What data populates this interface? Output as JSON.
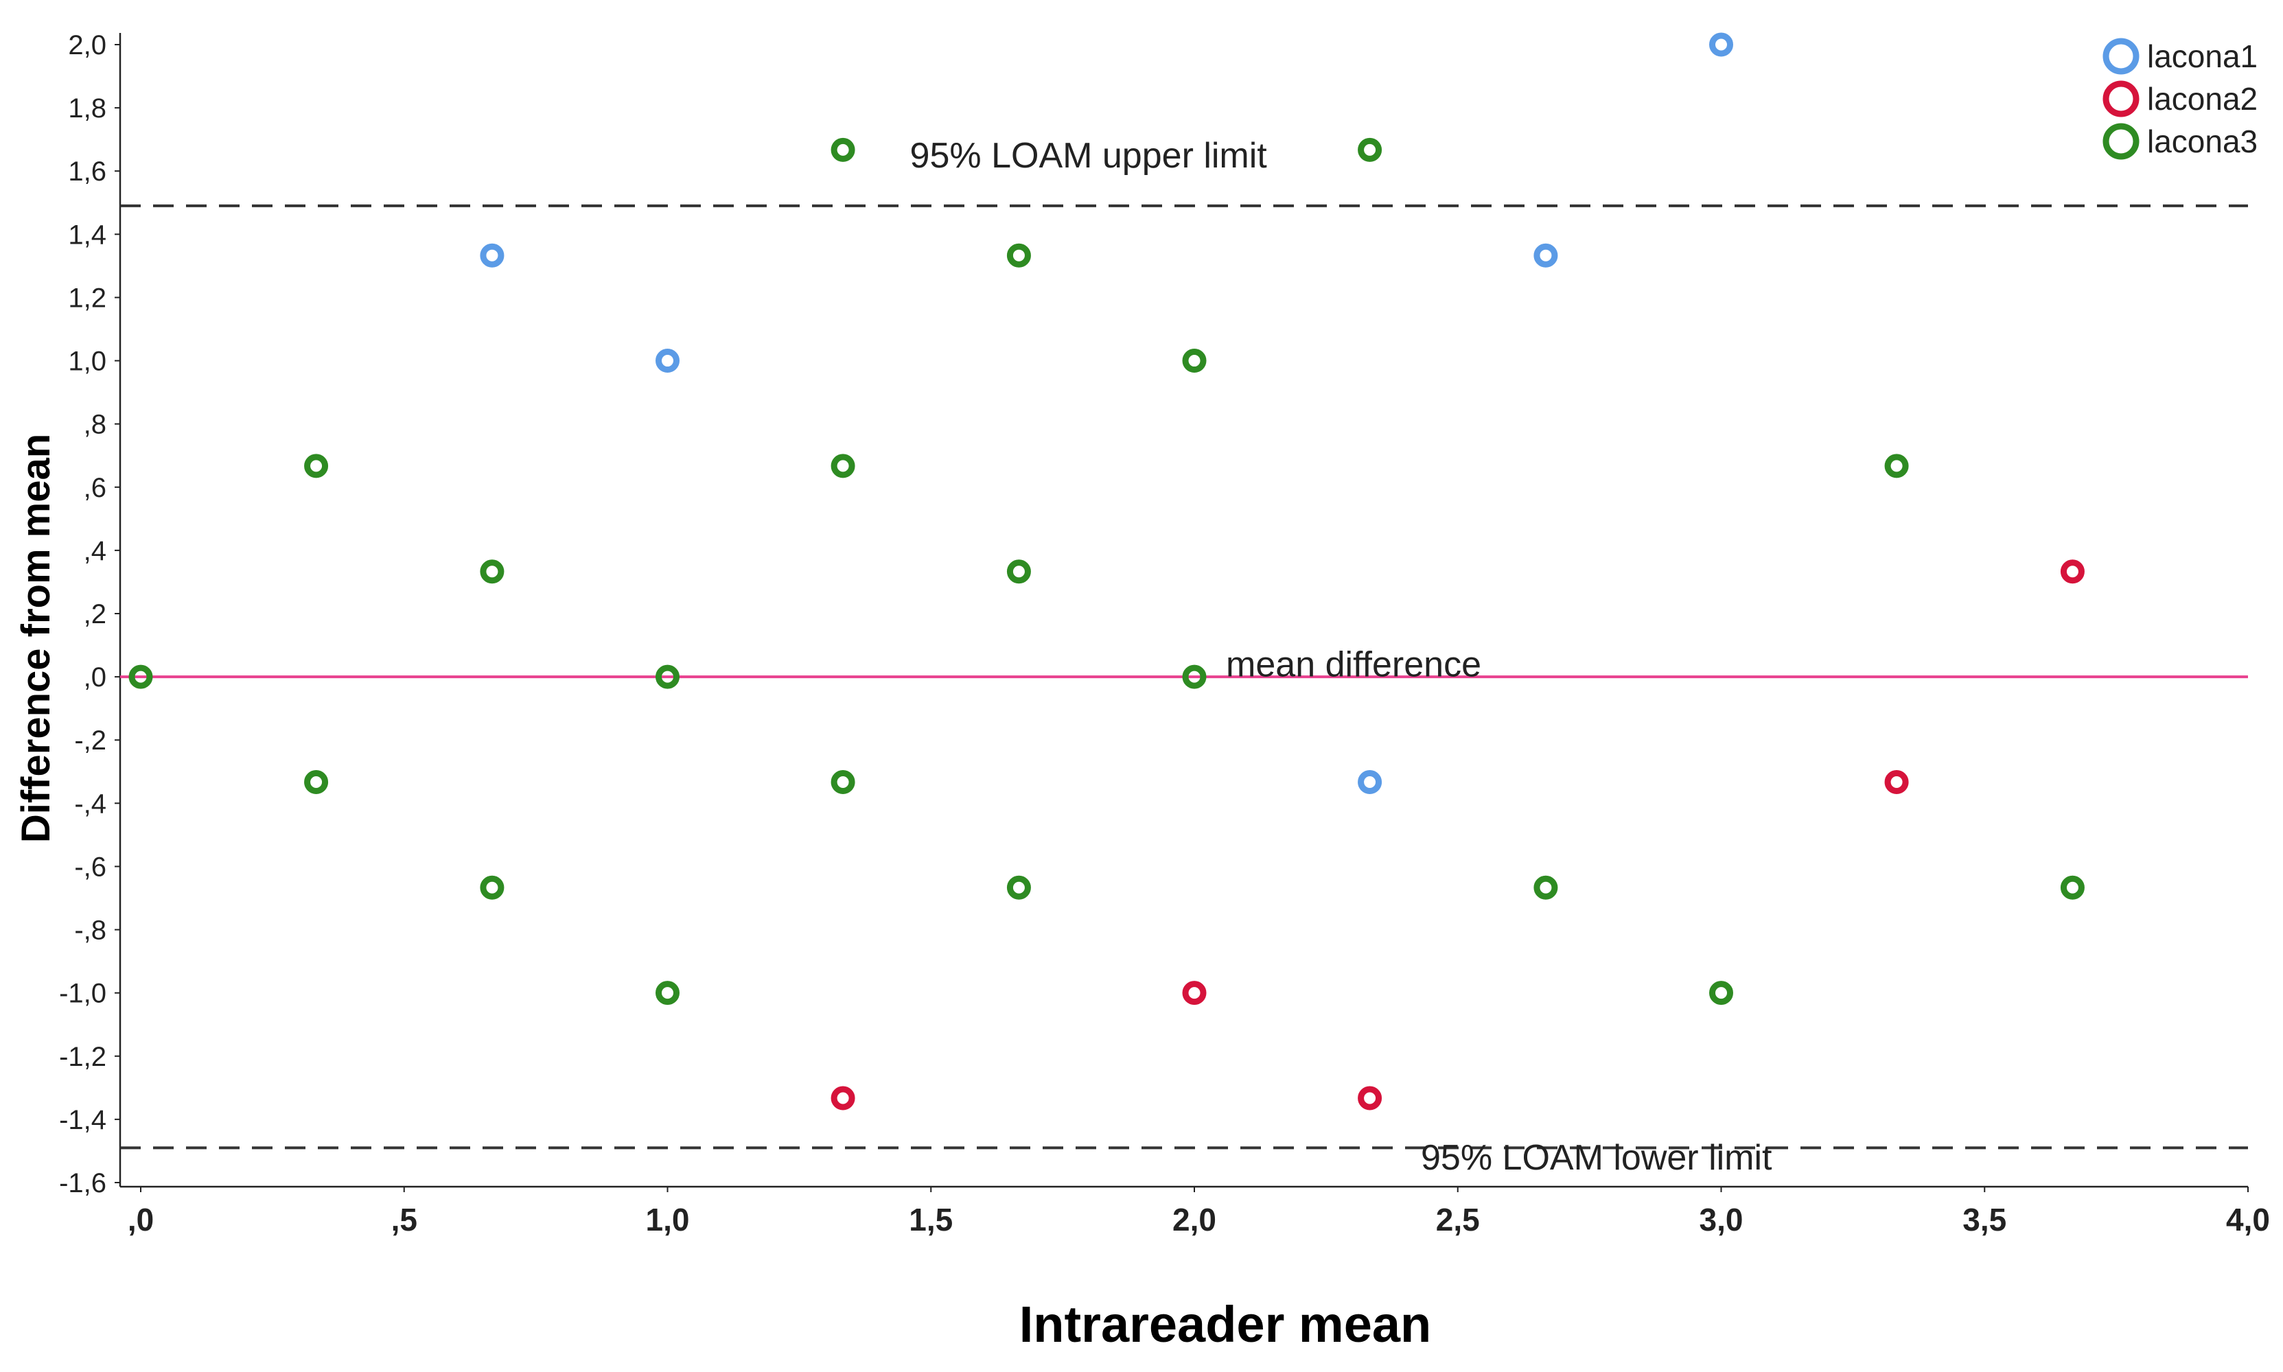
{
  "chart_data": {
    "type": "scatter",
    "title": "",
    "xlabel": "Intrareader mean",
    "ylabel": "Difference from mean",
    "xlim": [
      0,
      4.0
    ],
    "ylim": [
      -1.6,
      2.0
    ],
    "x_ticks": [
      {
        "value": 0,
        "label": ",0"
      },
      {
        "value": 0.5,
        "label": ",5"
      },
      {
        "value": 1.0,
        "label": "1,0"
      },
      {
        "value": 1.5,
        "label": "1,5"
      },
      {
        "value": 2.0,
        "label": "2,0"
      },
      {
        "value": 2.5,
        "label": "2,5"
      },
      {
        "value": 3.0,
        "label": "3,0"
      },
      {
        "value": 3.5,
        "label": "3,5"
      },
      {
        "value": 4.0,
        "label": "4,0"
      }
    ],
    "y_ticks": [
      {
        "value": 2.0,
        "label": "2,0"
      },
      {
        "value": 1.8,
        "label": "1,8"
      },
      {
        "value": 1.6,
        "label": "1,6"
      },
      {
        "value": 1.4,
        "label": "1,4"
      },
      {
        "value": 1.2,
        "label": "1,2"
      },
      {
        "value": 1.0,
        "label": "1,0"
      },
      {
        "value": 0.8,
        "label": ",8"
      },
      {
        "value": 0.6,
        "label": ",6"
      },
      {
        "value": 0.4,
        "label": ",4"
      },
      {
        "value": 0.2,
        "label": ",2"
      },
      {
        "value": 0.0,
        "label": ",0"
      },
      {
        "value": -0.2,
        "label": "-,2"
      },
      {
        "value": -0.4,
        "label": "-,4"
      },
      {
        "value": -0.6,
        "label": "-,6"
      },
      {
        "value": -0.8,
        "label": "-,8"
      },
      {
        "value": -1.0,
        "label": "-1,0"
      },
      {
        "value": -1.2,
        "label": "-1,2"
      },
      {
        "value": -1.4,
        "label": "-1,4"
      },
      {
        "value": -1.6,
        "label": "-1,6"
      }
    ],
    "reference_lines": [
      {
        "name": "upper-limit",
        "y": 1.49,
        "style": "dashed",
        "color": "#333333",
        "label": "95% LOAM upper limit",
        "label_x": 1.46,
        "label_y": 1.65
      },
      {
        "name": "mean-difference",
        "y": 0.0,
        "style": "solid",
        "color": "#e8418f",
        "label": "mean difference",
        "label_x": 2.06,
        "label_y": 0.04
      },
      {
        "name": "lower-limit",
        "y": -1.49,
        "style": "dashed",
        "color": "#333333",
        "label": "95% LOAM lower limit",
        "label_x": 2.43,
        "label_y": -1.52
      }
    ],
    "legend": {
      "position": "top-right",
      "entries": [
        {
          "label": "lacona1",
          "color": "#5b9be6"
        },
        {
          "label": "lacona2",
          "color": "#d6133b"
        },
        {
          "label": "lacona3",
          "color": "#2e8b22"
        }
      ]
    },
    "series": [
      {
        "name": "lacona1",
        "color": "#5b9be6",
        "points": [
          {
            "x": 0.667,
            "y": 1.333
          },
          {
            "x": 1.0,
            "y": 1.0
          },
          {
            "x": 2.667,
            "y": 1.333
          },
          {
            "x": 3.0,
            "y": 2.0
          },
          {
            "x": 2.333,
            "y": -0.333
          }
        ]
      },
      {
        "name": "lacona2",
        "color": "#d6133b",
        "points": [
          {
            "x": 3.667,
            "y": 0.333
          },
          {
            "x": 3.333,
            "y": -0.333
          },
          {
            "x": 2.0,
            "y": -1.0
          },
          {
            "x": 1.333,
            "y": -1.333
          },
          {
            "x": 2.333,
            "y": -1.333
          }
        ]
      },
      {
        "name": "lacona3",
        "color": "#2e8b22",
        "points": [
          {
            "x": 1.333,
            "y": 1.667
          },
          {
            "x": 2.333,
            "y": 1.667
          },
          {
            "x": 1.667,
            "y": 1.333
          },
          {
            "x": 2.0,
            "y": 1.0
          },
          {
            "x": 0.333,
            "y": 0.667
          },
          {
            "x": 1.333,
            "y": 0.667
          },
          {
            "x": 3.333,
            "y": 0.667
          },
          {
            "x": 0.667,
            "y": 0.333
          },
          {
            "x": 1.667,
            "y": 0.333
          },
          {
            "x": 0.0,
            "y": 0.0
          },
          {
            "x": 1.0,
            "y": 0.0
          },
          {
            "x": 2.0,
            "y": 0.0
          },
          {
            "x": 0.333,
            "y": -0.333
          },
          {
            "x": 1.333,
            "y": -0.333
          },
          {
            "x": 0.667,
            "y": -0.667
          },
          {
            "x": 1.667,
            "y": -0.667
          },
          {
            "x": 2.667,
            "y": -0.667
          },
          {
            "x": 3.667,
            "y": -0.667
          },
          {
            "x": 1.0,
            "y": -1.0
          },
          {
            "x": 3.0,
            "y": -1.0
          }
        ]
      }
    ]
  }
}
